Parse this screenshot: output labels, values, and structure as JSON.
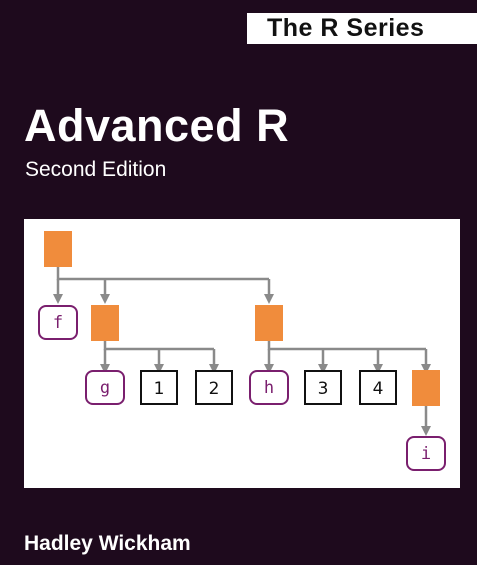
{
  "series": {
    "label": "The R Series"
  },
  "book": {
    "title": "Advanced R",
    "edition": "Second Edition",
    "author": "Hadley Wickham"
  },
  "diagram": {
    "nodes": {
      "f": "f",
      "g": "g",
      "h": "h",
      "i": "i",
      "v1": "1",
      "v2": "2",
      "v3": "3",
      "v4": "4"
    }
  },
  "colors": {
    "background": "#1e0a1d",
    "environment": "#f08c3c",
    "function_border": "#7a1f6e",
    "arrow": "#8a8a8a"
  }
}
